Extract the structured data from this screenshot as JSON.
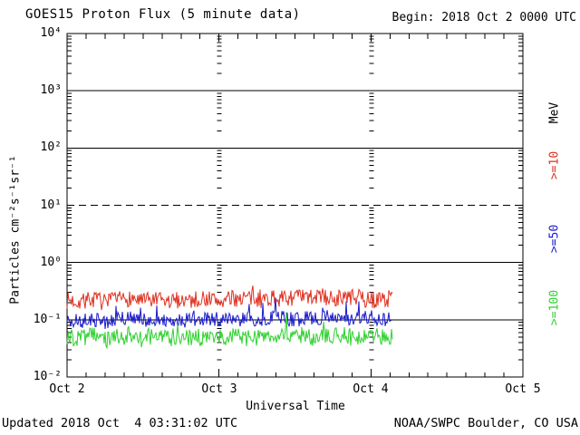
{
  "header": {
    "title": "GOES15 Proton Flux (5 minute data)",
    "begin_label": "Begin: 2018 Oct 2 0000 UTC"
  },
  "footer": {
    "updated": "Updated 2018 Oct  4 03:31:02 UTC",
    "source": "NOAA/SWPC Boulder, CO USA"
  },
  "right_legend": {
    "unit_label": "MeV",
    "unit_color": "#000000",
    "items": [
      {
        "label": ">=10",
        "color": "#dd3020"
      },
      {
        "label": ">=50",
        "color": "#1a1acc"
      },
      {
        "label": ">=100",
        "color": "#2fd12f"
      }
    ]
  },
  "chart_data": {
    "type": "line",
    "title": "GOES15 Proton Flux (5 minute data)",
    "xlabel": "Universal Time",
    "ylabel": "Particles cm⁻²s⁻¹sr⁻¹",
    "x_ticks": [
      "Oct 2",
      "Oct 3",
      "Oct 4",
      "Oct 5"
    ],
    "x_range_days": [
      0,
      3
    ],
    "x_begin": "2018 Oct 2 0000 UTC",
    "y_scale": "log10",
    "y_log_range": [
      -2,
      4
    ],
    "y_tick_labels": [
      "10⁴",
      "10³",
      "10²",
      "10¹",
      "10⁰",
      "10⁻¹",
      "10⁻²"
    ],
    "grid": {
      "hlines": [
        {
          "log": 3,
          "style": "solid"
        },
        {
          "log": 2,
          "style": "solid"
        },
        {
          "log": 1,
          "style": "dashed"
        },
        {
          "log": 0,
          "style": "solid"
        },
        {
          "log": -1,
          "style": "solid"
        }
      ],
      "day_gridlines_at_days": [
        1,
        2
      ],
      "x_minor_tick_hours": 3
    },
    "legend_position": "right-rotated",
    "data_start_day": 0,
    "data_end_day": 2.146,
    "sample_interval_hours": 2,
    "series": [
      {
        "name": ">=10 MeV",
        "color": "#e03020",
        "baseline_flux": 0.22,
        "noise_log_halfwidth": 0.15,
        "spike_prob": 0.05,
        "spike_log_max": 0.15,
        "values": [
          0.22,
          0.21,
          0.23,
          0.2,
          0.22,
          0.24,
          0.21,
          0.22,
          0.2,
          0.23,
          0.22,
          0.24,
          0.21,
          0.23,
          0.25,
          0.22,
          0.24,
          0.23,
          0.25,
          0.24,
          0.26,
          0.23,
          0.25,
          0.24,
          0.22,
          0.23,
          0.24
        ]
      },
      {
        "name": ">=50 MeV",
        "color": "#1a1acc",
        "baseline_flux": 0.1,
        "noise_log_halfwidth": 0.13,
        "spike_prob": 0.04,
        "spike_log_max": 0.28,
        "values": [
          0.1,
          0.095,
          0.105,
          0.09,
          0.1,
          0.11,
          0.095,
          0.1,
          0.105,
          0.095,
          0.1,
          0.11,
          0.1,
          0.095,
          0.105,
          0.1,
          0.11,
          0.105,
          0.1,
          0.11,
          0.105,
          0.115,
          0.1,
          0.105,
          0.11,
          0.1,
          0.105
        ]
      },
      {
        "name": ">=100 MeV",
        "color": "#2fd12f",
        "baseline_flux": 0.049,
        "noise_log_halfwidth": 0.16,
        "spike_prob": 0.04,
        "spike_log_max": 0.3,
        "values": [
          0.05,
          0.047,
          0.052,
          0.045,
          0.049,
          0.053,
          0.046,
          0.05,
          0.048,
          0.052,
          0.049,
          0.047,
          0.051,
          0.053,
          0.048,
          0.05,
          0.052,
          0.049,
          0.054,
          0.051,
          0.048,
          0.053,
          0.05,
          0.047,
          0.052,
          0.05,
          0.049
        ]
      }
    ]
  }
}
